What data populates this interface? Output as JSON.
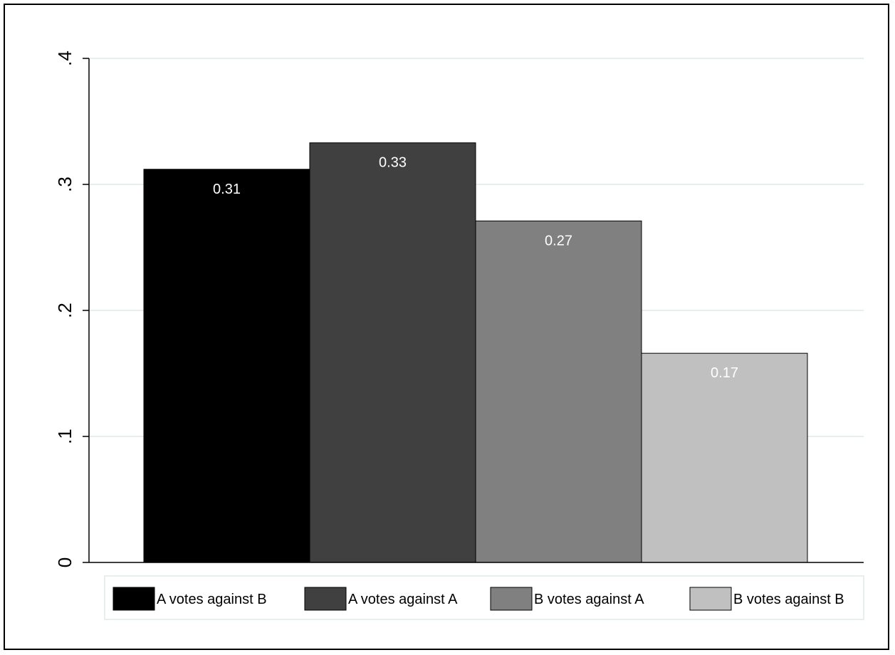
{
  "chart_data": {
    "type": "bar",
    "title": "",
    "xlabel": "",
    "ylabel": "",
    "ylim": [
      0,
      0.4
    ],
    "yticks": [
      {
        "value": 0,
        "label": "0"
      },
      {
        "value": 0.1,
        "label": ".1"
      },
      {
        "value": 0.2,
        "label": ".2"
      },
      {
        "value": 0.3,
        "label": ".3"
      },
      {
        "value": 0.4,
        "label": ".4"
      }
    ],
    "grid": true,
    "legend_position": "bottom",
    "categories": [
      "A votes against B",
      "A votes against A",
      "B votes against A",
      "B votes against B"
    ],
    "values": [
      0.312,
      0.333,
      0.271,
      0.166
    ],
    "data_labels": [
      "0.31",
      "0.33",
      "0.27",
      "0.17"
    ],
    "colors": [
      "#000000",
      "#404040",
      "#808080",
      "#c0c0c0"
    ],
    "bar_label_color": "#ffffff",
    "grid_color": "#e6eeee"
  }
}
